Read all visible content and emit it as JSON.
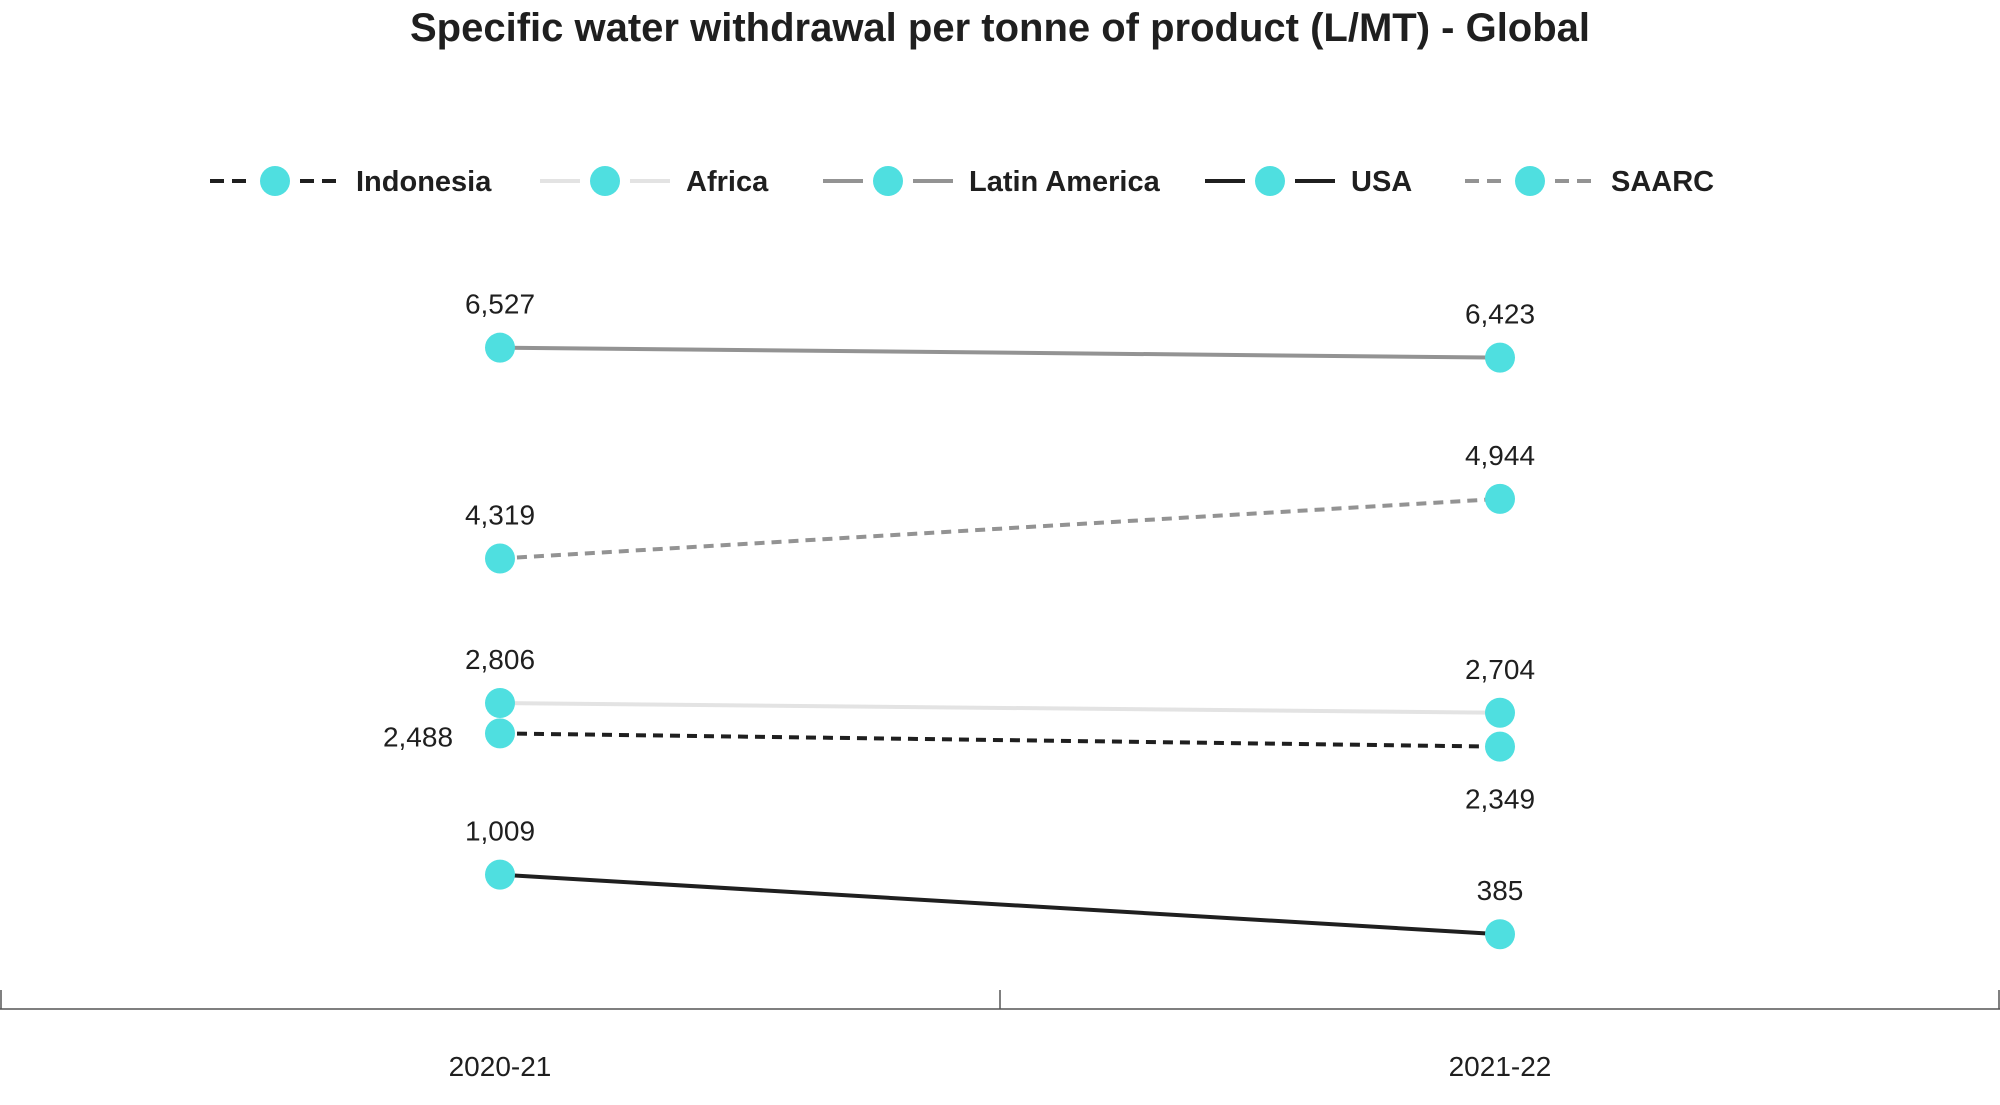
{
  "chart_data": {
    "type": "line",
    "title": "Specific water withdrawal per tonne of product (L/MT) - Global",
    "categories": [
      "2020-21",
      "2021-22"
    ],
    "legend_position": "top",
    "grid": false,
    "marker_color": "#4fdfe0",
    "series": [
      {
        "name": "Indonesia",
        "values": [
          2488,
          2349
        ],
        "labels": [
          "2,488",
          "2,349"
        ],
        "color": "#1f1f1f",
        "dashed": true
      },
      {
        "name": "Africa",
        "values": [
          2806,
          2704
        ],
        "labels": [
          "2,806",
          "2,704"
        ],
        "color": "#e3e3e3",
        "dashed": false
      },
      {
        "name": "Latin America",
        "values": [
          6527,
          6423
        ],
        "labels": [
          "6,527",
          "6,423"
        ],
        "color": "#939393",
        "dashed": false
      },
      {
        "name": "USA",
        "values": [
          1009,
          385
        ],
        "labels": [
          "1,009",
          "385"
        ],
        "color": "#1f1f1f",
        "dashed": false
      },
      {
        "name": "SAARC",
        "values": [
          4319,
          4944
        ],
        "labels": [
          "4,319",
          "4,944"
        ],
        "color": "#939393",
        "dashed": true
      }
    ]
  }
}
